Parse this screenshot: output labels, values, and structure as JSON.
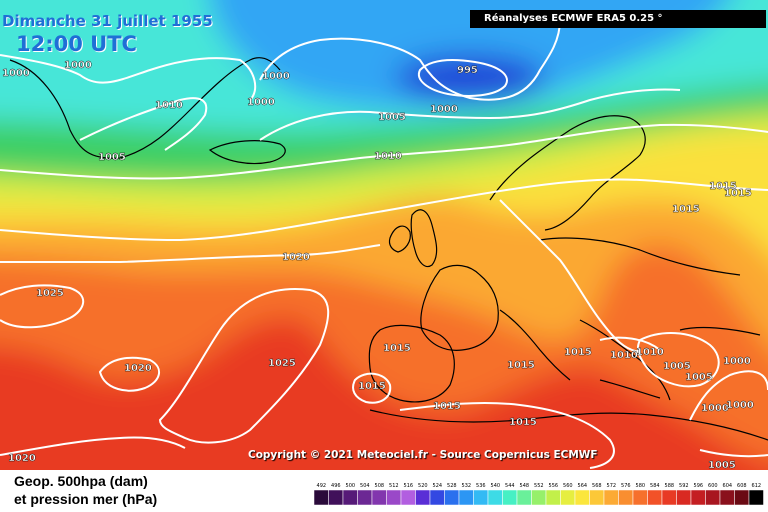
{
  "header": {
    "date": "Dimanche 31 juillet 1955",
    "time": "12:00 UTC",
    "source": "Réanalyses ECMWF ERA5 0.25 °"
  },
  "copyright": "Copyright © 2021 Meteociel.fr - Source Copernicus ECMWF",
  "legend": {
    "title": "Geop. 500hpa (dam)",
    "subtitle": "et pression mer (hPa)",
    "scale_values": [
      492,
      496,
      500,
      504,
      508,
      512,
      516,
      520,
      524,
      528,
      532,
      536,
      540,
      544,
      548,
      552,
      556,
      560,
      564,
      568,
      572,
      576,
      580,
      584,
      588,
      592,
      596,
      600,
      604,
      608,
      612
    ],
    "scale_colors": [
      "#2a0a3a",
      "#40105a",
      "#561a78",
      "#6c2894",
      "#8236ae",
      "#9a48c8",
      "#b25ee0",
      "#5a2ed6",
      "#3348e2",
      "#2a70ee",
      "#2c96f4",
      "#33baf4",
      "#3ddbe6",
      "#46f0c4",
      "#6af09a",
      "#96f06a",
      "#c2f04a",
      "#e6ee40",
      "#fbe63c",
      "#fcc838",
      "#fcaa34",
      "#f98e30",
      "#f6702c",
      "#f25228",
      "#e83a24",
      "#d92a22",
      "#c41e22",
      "#a81620",
      "#8a101c",
      "#6a0a14",
      "#000000"
    ]
  },
  "isobars": [
    {
      "value": "995"
    },
    {
      "value": "1000"
    },
    {
      "value": "1005"
    },
    {
      "value": "1010"
    },
    {
      "value": "1015"
    },
    {
      "value": "1020"
    },
    {
      "value": "1025"
    }
  ],
  "map_colors": {
    "z_530": "#33a6f4",
    "z_540": "#46e6d8",
    "z_548": "#3ecf64",
    "z_556": "#d6ee44",
    "z_564": "#fbe03c",
    "z_572": "#fba832",
    "z_580": "#f6702c",
    "z_588": "#e83a24",
    "low_center": "#2348d8",
    "isobar_line": "#ffffff",
    "coast_line": "#000000"
  }
}
